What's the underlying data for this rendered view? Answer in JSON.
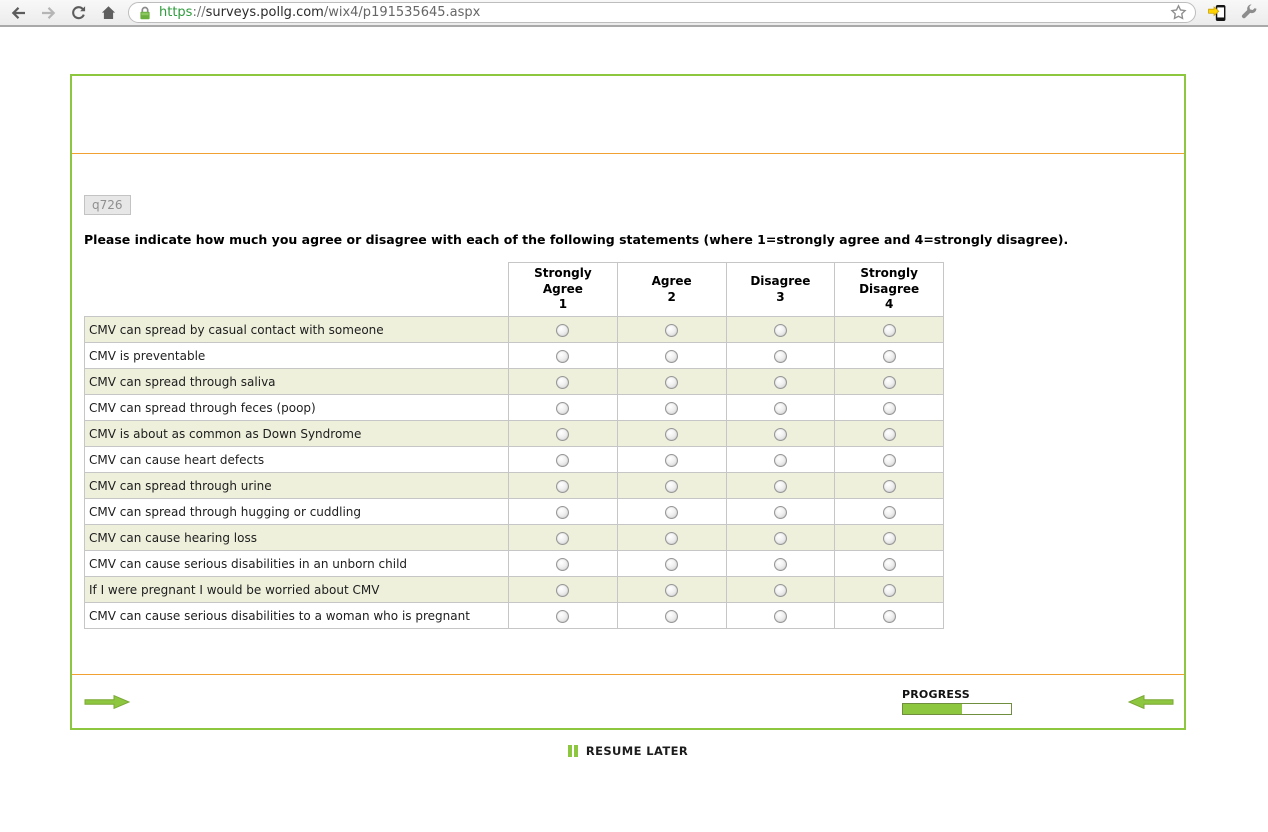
{
  "browser": {
    "url": {
      "scheme": "https",
      "separator": "://",
      "host": "surveys.pollg.com",
      "path": "/wix4/p191535645.aspx"
    },
    "icons": [
      "back-arrow-icon",
      "forward-arrow-icon",
      "reload-icon",
      "home-icon",
      "ssl-lock-icon",
      "bookmark-star-icon",
      "send-to-phone-icon",
      "wrench-icon"
    ]
  },
  "survey": {
    "question_id": "q726",
    "question_text": "Please indicate how much you agree or disagree with each of the following statements (where 1=strongly agree and 4=strongly disagree).",
    "table": {
      "columns": [
        {
          "label": "Strongly Agree",
          "value": "1"
        },
        {
          "label": "Agree",
          "value": "2"
        },
        {
          "label": "Disagree",
          "value": "3"
        },
        {
          "label": "Strongly Disagree",
          "value": "4"
        }
      ],
      "rows": [
        "CMV can spread by casual contact with someone",
        "CMV is preventable",
        "CMV can spread through saliva",
        "CMV can spread through feces (poop)",
        "CMV is about as common as Down Syndrome",
        "CMV can cause heart defects",
        "CMV can spread through urine",
        "CMV can spread through hugging or cuddling",
        "CMV can cause hearing loss",
        "CMV can cause serious disabilities in an unborn child",
        "If I were pregnant I would be worried about CMV",
        "CMV can cause serious disabilities to a woman who is pregnant"
      ],
      "selected": null
    },
    "footer": {
      "progress_label": "PROGRESS",
      "progress_percent": 55
    },
    "resume_later": "RESUME LATER"
  },
  "colors": {
    "accent_green": "#8dc63f",
    "accent_orange": "#f0a132",
    "row_alt_bg": "#eef0dc",
    "table_border": "#c6c6c6"
  }
}
